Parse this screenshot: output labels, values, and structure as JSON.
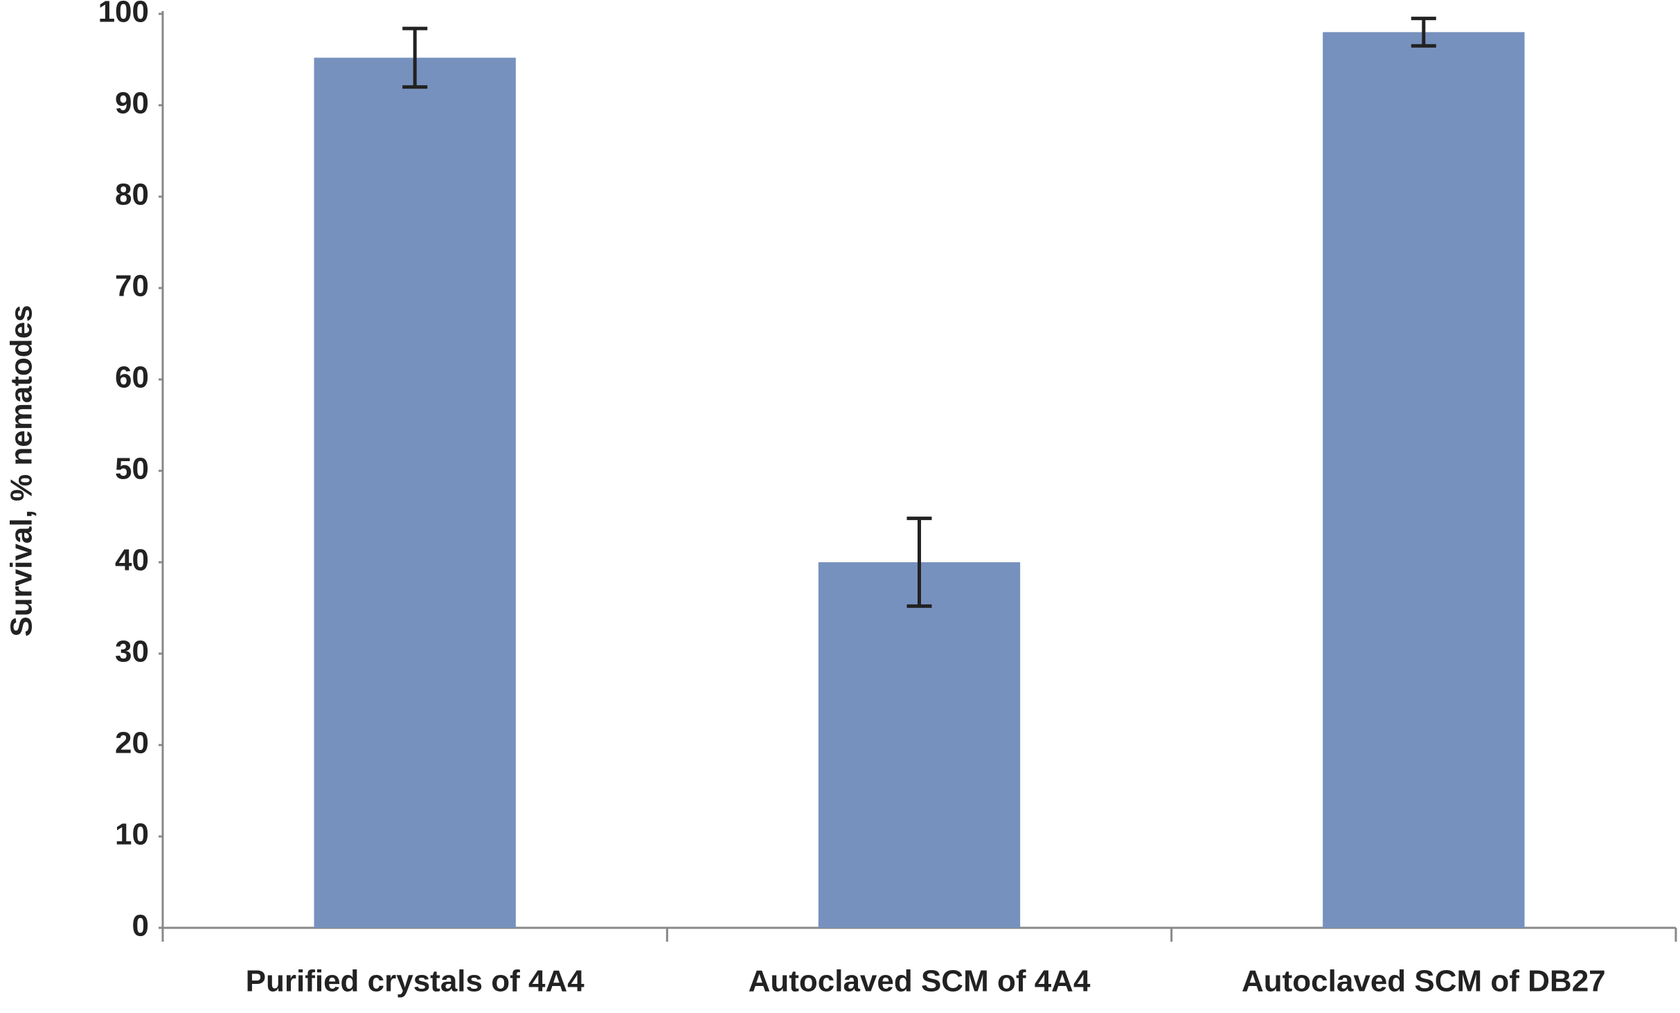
{
  "chart_data": {
    "type": "bar",
    "y_label": "Survival, % nematodes",
    "categories": [
      "Purified crystals of 4A4",
      "Autoclaved SCM of 4A4",
      "Autoclaved SCM of DB27"
    ],
    "values": [
      95.2,
      40,
      98
    ],
    "errors": [
      3.2,
      4.8,
      1.5
    ],
    "color": "#7691be",
    "ylim": [
      0,
      100
    ],
    "yticks": [
      0,
      10,
      20,
      30,
      40,
      50,
      60,
      70,
      80,
      90,
      100
    ],
    "grid": false
  }
}
